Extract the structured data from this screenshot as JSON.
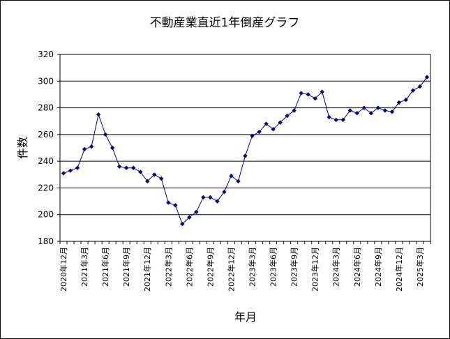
{
  "chart_data": {
    "type": "line",
    "title": "不動産業直近1年倒産グラフ",
    "xlabel": "年月",
    "ylabel": "件数",
    "ylim": [
      180,
      320
    ],
    "yticks": [
      180,
      200,
      220,
      240,
      260,
      280,
      300,
      320
    ],
    "grid": true,
    "legend": "none",
    "colors": {
      "line": "#000080",
      "marker": "#000080",
      "grid": "#000000",
      "plot_bg": "#ffffff"
    },
    "x": [
      "2020年12月",
      "2021年1月",
      "2021年2月",
      "2021年3月",
      "2021年4月",
      "2021年5月",
      "2021年6月",
      "2021年7月",
      "2021年8月",
      "2021年9月",
      "2021年10月",
      "2021年11月",
      "2021年12月",
      "2022年1月",
      "2022年2月",
      "2022年3月",
      "2022年4月",
      "2022年5月",
      "2022年6月",
      "2022年7月",
      "2022年8月",
      "2022年9月",
      "2022年10月",
      "2022年11月",
      "2022年12月",
      "2023年1月",
      "2023年2月",
      "2023年3月",
      "2023年4月",
      "2023年5月",
      "2023年6月",
      "2023年7月",
      "2023年8月",
      "2023年9月",
      "2023年10月",
      "2023年11月",
      "2023年12月",
      "2024年1月",
      "2024年2月",
      "2024年3月",
      "2024年4月",
      "2024年5月",
      "2024年6月",
      "2024年7月",
      "2024年8月",
      "2024年9月",
      "2024年10月",
      "2024年11月",
      "2024年12月",
      "2025年1月",
      "2025年2月",
      "2025年3月",
      "2025年4月"
    ],
    "xtick_labels": [
      "2020年12月",
      "2021年3月",
      "2021年6月",
      "2021年9月",
      "2021年12月",
      "2022年3月",
      "2022年6月",
      "2022年9月",
      "2022年12月",
      "2023年3月",
      "2023年6月",
      "2023年9月",
      "2023年12月",
      "2024年3月",
      "2024年6月",
      "2024年9月",
      "2024年12月",
      "2025年3月"
    ],
    "series": [
      {
        "values": [
          231,
          233,
          235,
          249,
          251,
          275,
          260,
          250,
          236,
          235,
          235,
          232,
          225,
          230,
          227,
          209,
          207,
          193,
          198,
          202,
          213,
          213,
          210,
          217,
          229,
          225,
          244,
          259,
          262,
          268,
          264,
          269,
          274,
          278,
          291,
          290,
          287,
          292,
          273,
          271,
          271,
          278,
          276,
          280,
          276,
          280,
          278,
          277,
          284,
          286,
          293,
          296,
          303
        ]
      }
    ]
  }
}
